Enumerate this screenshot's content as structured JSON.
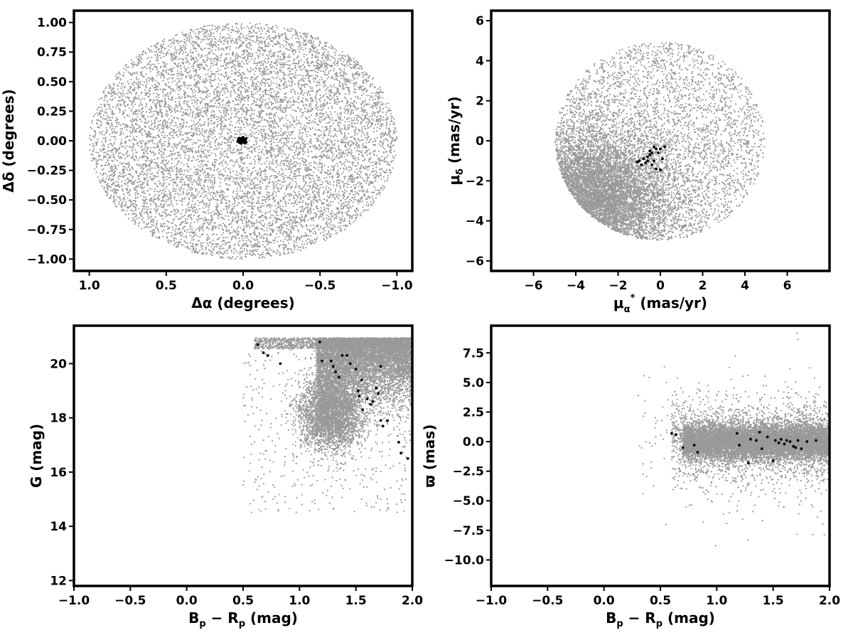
{
  "colors": {
    "field": "#999999",
    "members": "#000000",
    "frame": "#000000",
    "background": "#ffffff"
  },
  "chart_data": [
    {
      "type": "scatter",
      "panel": "top-left",
      "xlabel": "Δα (degrees)",
      "ylabel": "Δδ (degrees)",
      "xlim": [
        1.1,
        -1.1
      ],
      "ylim": [
        -1.1,
        1.1
      ],
      "x_inverted": true,
      "xticks": [
        "1.0",
        "0.5",
        "0.0",
        "−0.5",
        "−1.0"
      ],
      "xtick_values": [
        1.0,
        0.5,
        0.0,
        -0.5,
        -1.0
      ],
      "yticks": [
        "1.00",
        "0.75",
        "0.50",
        "0.25",
        "0.00",
        "−0.25",
        "−0.50",
        "−0.75",
        "−1.00"
      ],
      "ytick_values": [
        1.0,
        0.75,
        0.5,
        0.25,
        0.0,
        -0.25,
        -0.5,
        -0.75,
        -1.0
      ],
      "grid": false,
      "series": [
        {
          "role": "field",
          "distribution": "uniform disk",
          "center": [
            0,
            0
          ],
          "radius": 1.0,
          "approx_points": 9000
        },
        {
          "role": "members",
          "center": [
            0.0,
            0.0
          ],
          "spread": [
            0.012,
            0.012
          ],
          "points": [
            [
              0.0,
              0.0
            ],
            [
              0.01,
              0.02
            ],
            [
              -0.01,
              0.01
            ],
            [
              0.02,
              -0.01
            ],
            [
              0.0,
              0.03
            ],
            [
              -0.02,
              -0.01
            ],
            [
              0.01,
              -0.02
            ],
            [
              0.03,
              0.01
            ],
            [
              -0.01,
              -0.02
            ],
            [
              0.02,
              0.02
            ],
            [
              0.0,
              -0.01
            ],
            [
              0.015,
              0.005
            ],
            [
              -0.005,
              0.015
            ],
            [
              0.025,
              -0.015
            ],
            [
              -0.015,
              0.0
            ],
            [
              0.005,
              0.025
            ],
            [
              0.035,
              -0.005
            ],
            [
              0.01,
              0.0
            ],
            [
              -0.01,
              -0.005
            ],
            [
              0.02,
              0.01
            ],
            [
              0.0,
              0.01
            ],
            [
              0.01,
              -0.01
            ],
            [
              -0.02,
              0.02
            ],
            [
              0.03,
              0.02
            ],
            [
              0.005,
              -0.005
            ],
            [
              0.015,
              -0.02
            ]
          ]
        }
      ]
    },
    {
      "type": "scatter",
      "panel": "top-right",
      "xlabel": "μα* (mas/yr)",
      "ylabel": "μδ (mas/yr)",
      "xlim": [
        -8.0,
        8.0
      ],
      "ylim": [
        -6.5,
        6.5
      ],
      "xticks": [
        "−6",
        "−4",
        "−2",
        "0",
        "2",
        "4",
        "6"
      ],
      "xtick_values": [
        -6,
        -4,
        -2,
        0,
        2,
        4,
        6
      ],
      "yticks": [
        "6",
        "4",
        "2",
        "0",
        "−2",
        "−4",
        "−6"
      ],
      "ytick_values": [
        6,
        4,
        2,
        0,
        -2,
        -4,
        -6
      ],
      "grid": false,
      "series": [
        {
          "role": "field",
          "distribution": "clipped to circle",
          "center": [
            0,
            0
          ],
          "radius": 5.0,
          "peak": [
            -3.5,
            -3.0
          ],
          "approx_points": 14000
        },
        {
          "role": "members",
          "points": [
            [
              -1.0,
              -1.0
            ],
            [
              -0.8,
              -0.9
            ],
            [
              -0.6,
              -0.8
            ],
            [
              -0.5,
              -0.5
            ],
            [
              -0.3,
              -0.3
            ],
            [
              -0.2,
              -0.4
            ],
            [
              0.0,
              -0.4
            ],
            [
              0.2,
              -0.3
            ],
            [
              -0.4,
              -1.2
            ],
            [
              -0.2,
              -1.4
            ],
            [
              0.0,
              -1.45
            ],
            [
              -0.1,
              -0.6
            ],
            [
              -0.7,
              -1.1
            ],
            [
              -1.1,
              -1.05
            ],
            [
              -0.9,
              -1.2
            ],
            [
              -0.5,
              -0.7
            ],
            [
              -0.3,
              -1.0
            ],
            [
              0.1,
              -0.9
            ],
            [
              -0.6,
              -1.0
            ],
            [
              -0.4,
              -0.6
            ]
          ]
        }
      ]
    },
    {
      "type": "scatter",
      "panel": "bottom-left",
      "xlabel": "Bp − Rp (mag)",
      "ylabel": "G (mag)",
      "xlim": [
        -1.0,
        2.0
      ],
      "ylim": [
        11.8,
        21.4
      ],
      "xticks": [
        "−1.0",
        "−0.5",
        "0.0",
        "0.5",
        "1.0",
        "1.5",
        "2.0"
      ],
      "xtick_values": [
        -1.0,
        -0.5,
        0.0,
        0.5,
        1.0,
        1.5,
        2.0
      ],
      "yticks": [
        "20",
        "18",
        "16",
        "14",
        "12"
      ],
      "ytick_values": [
        20,
        18,
        16,
        14,
        12
      ],
      "grid": false,
      "series": [
        {
          "role": "field",
          "distribution": "color-magnitude locus",
          "approx_points": 12000
        },
        {
          "role": "members",
          "points": [
            [
              0.63,
              20.7
            ],
            [
              0.68,
              20.4
            ],
            [
              0.72,
              20.3
            ],
            [
              0.83,
              20.0
            ],
            [
              1.18,
              20.8
            ],
            [
              1.2,
              20.1
            ],
            [
              1.28,
              20.1
            ],
            [
              1.3,
              19.9
            ],
            [
              1.32,
              19.7
            ],
            [
              1.35,
              19.5
            ],
            [
              1.38,
              20.3
            ],
            [
              1.42,
              20.3
            ],
            [
              1.45,
              20.0
            ],
            [
              1.5,
              19.8
            ],
            [
              1.52,
              19.0
            ],
            [
              1.53,
              18.8
            ],
            [
              1.55,
              19.4
            ],
            [
              1.56,
              18.3
            ],
            [
              1.6,
              18.7
            ],
            [
              1.63,
              18.5
            ],
            [
              1.65,
              18.6
            ],
            [
              1.68,
              19.1
            ],
            [
              1.7,
              18.9
            ],
            [
              1.72,
              17.9
            ],
            [
              1.74,
              17.7
            ],
            [
              1.72,
              19.9
            ],
            [
              1.78,
              17.9
            ],
            [
              1.88,
              17.1
            ],
            [
              1.9,
              16.7
            ],
            [
              1.96,
              16.5
            ]
          ]
        }
      ]
    },
    {
      "type": "scatter",
      "panel": "bottom-right",
      "xlabel": "Bp − Rp (mag)",
      "ylabel": "ϖ (mas)",
      "xlim": [
        -1.0,
        2.0
      ],
      "ylim": [
        -12.2,
        9.8
      ],
      "xticks": [
        "−1.0",
        "−0.5",
        "0.0",
        "0.5",
        "1.0",
        "1.5",
        "2.0"
      ],
      "xtick_values": [
        -1.0,
        -0.5,
        0.0,
        0.5,
        1.0,
        1.5,
        2.0
      ],
      "yticks": [
        "7.5",
        "5.0",
        "2.5",
        "0.0",
        "−2.5",
        "−5.0",
        "−7.5",
        "−10.0"
      ],
      "ytick_values": [
        7.5,
        5.0,
        2.5,
        0.0,
        -2.5,
        -5.0,
        -7.5,
        -10.0
      ],
      "grid": false,
      "series": [
        {
          "role": "field",
          "distribution": "band around zero parallax",
          "approx_points": 12000
        },
        {
          "role": "members",
          "points": [
            [
              0.6,
              0.7
            ],
            [
              0.64,
              0.6
            ],
            [
              0.7,
              -0.5
            ],
            [
              0.8,
              -0.3
            ],
            [
              0.83,
              -0.9
            ],
            [
              1.18,
              0.7
            ],
            [
              1.2,
              -0.3
            ],
            [
              1.28,
              -1.8
            ],
            [
              1.3,
              0.2
            ],
            [
              1.35,
              0.1
            ],
            [
              1.38,
              0.8
            ],
            [
              1.4,
              -0.6
            ],
            [
              1.45,
              0.4
            ],
            [
              1.5,
              -1.6
            ],
            [
              1.52,
              0.1
            ],
            [
              1.55,
              -0.1
            ],
            [
              1.57,
              0.2
            ],
            [
              1.6,
              -0.2
            ],
            [
              1.62,
              0.1
            ],
            [
              1.65,
              0.0
            ],
            [
              1.68,
              -0.4
            ],
            [
              1.7,
              -0.5
            ],
            [
              1.72,
              0.1
            ],
            [
              1.75,
              -0.6
            ],
            [
              1.8,
              0.0
            ],
            [
              1.88,
              0.1
            ]
          ]
        }
      ]
    }
  ]
}
